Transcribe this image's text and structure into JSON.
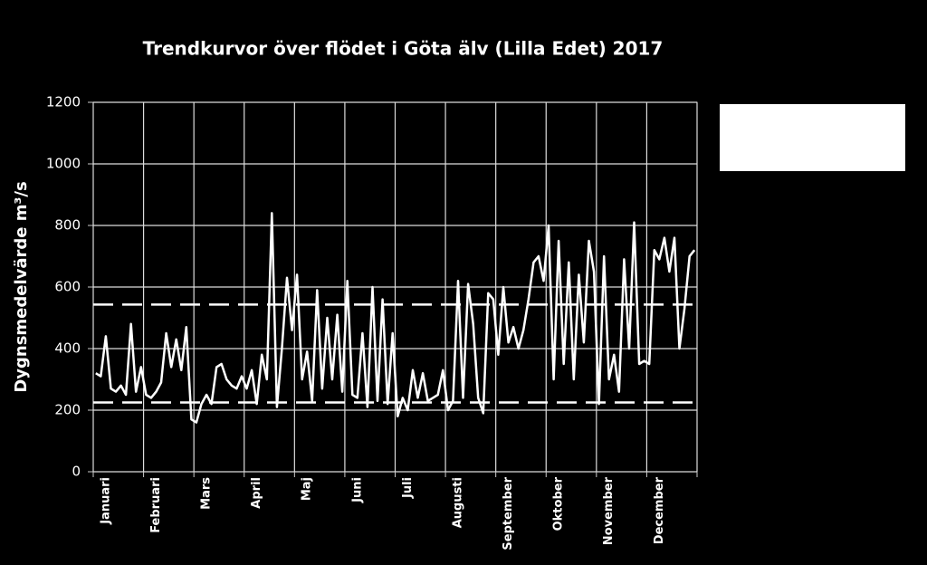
{
  "chart_data": {
    "type": "line",
    "title": "Trendkurvor över flödet i Göta älv (Lilla Edet) 2017",
    "y_label": "Dygnsmedelvärde m³/s",
    "categories": [
      null,
      null,
      "Januari",
      null,
      null,
      null,
      null,
      null,
      null,
      null,
      null,
      null,
      "Februari",
      null,
      null,
      null,
      null,
      null,
      null,
      null,
      null,
      null,
      "Mars",
      null,
      null,
      null,
      null,
      null,
      null,
      null,
      null,
      null,
      "April",
      null,
      null,
      null,
      null,
      null,
      null,
      null,
      null,
      null,
      "Maj",
      null,
      null,
      null,
      null,
      null,
      null,
      null,
      null,
      null,
      "Juni",
      null,
      null,
      null,
      null,
      null,
      null,
      null,
      null,
      null,
      "Juli",
      null,
      null,
      null,
      null,
      null,
      null,
      null,
      null,
      null,
      "Augusti",
      null,
      null,
      null,
      null,
      null,
      null,
      null,
      null,
      null,
      "September",
      null,
      null,
      null,
      null,
      null,
      null,
      null,
      null,
      null,
      "Oktober",
      null,
      null,
      null,
      null,
      null,
      null,
      null,
      null,
      null,
      "November",
      null,
      null,
      null,
      null,
      null,
      null,
      null,
      null,
      null,
      "December",
      null,
      null,
      null,
      null,
      null,
      null,
      null
    ],
    "values": [
      320,
      310,
      440,
      270,
      260,
      280,
      250,
      480,
      260,
      340,
      250,
      240,
      260,
      290,
      450,
      340,
      430,
      330,
      470,
      170,
      160,
      220,
      250,
      220,
      340,
      350,
      300,
      280,
      270,
      310,
      270,
      330,
      220,
      380,
      300,
      840,
      210,
      400,
      630,
      460,
      640,
      300,
      390,
      230,
      590,
      270,
      500,
      300,
      510,
      260,
      620,
      250,
      240,
      450,
      210,
      600,
      230,
      560,
      220,
      450,
      180,
      240,
      200,
      330,
      240,
      320,
      230,
      240,
      250,
      330,
      200,
      230,
      620,
      240,
      610,
      480,
      240,
      190,
      580,
      560,
      380,
      600,
      420,
      470,
      400,
      460,
      560,
      680,
      700,
      620,
      800,
      300,
      750,
      350,
      680,
      300,
      640,
      420,
      750,
      650,
      220,
      700,
      300,
      380,
      260,
      690,
      400,
      810,
      350,
      360,
      350,
      720,
      690,
      760,
      650,
      760,
      400,
      530,
      700,
      720
    ],
    "color": "#ffffff",
    "reference_lines": [
      543,
      225
    ],
    "ylim": [
      0,
      1200
    ],
    "yticks": [
      0,
      200,
      400,
      600,
      800,
      1000,
      1200
    ],
    "grid": true
  }
}
